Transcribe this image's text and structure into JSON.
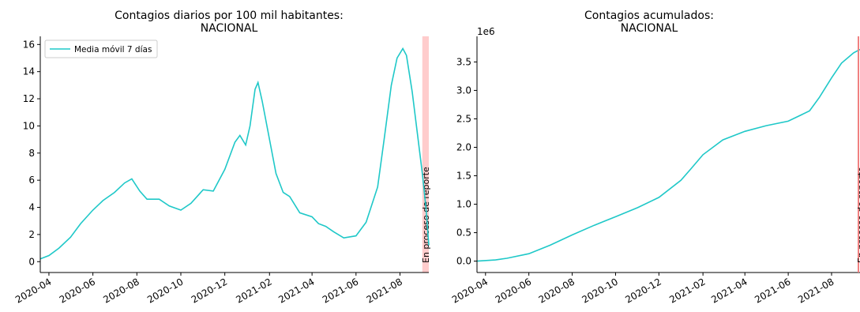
{
  "chart_data": [
    {
      "type": "line",
      "title": "Contagios diarios por 100 mil habitantes:\nNACIONAL",
      "xlabel": "",
      "ylabel": "",
      "x_ticks": [
        "2020-04",
        "2020-06",
        "2020-08",
        "2020-10",
        "2020-12",
        "2021-02",
        "2021-04",
        "2021-06",
        "2021-08"
      ],
      "y_ticks": [
        0,
        2,
        4,
        6,
        8,
        10,
        12,
        14,
        16
      ],
      "ylim": [
        -0.8,
        16.6
      ],
      "xlim": [
        "2020-03-20",
        "2021-09-10"
      ],
      "grid": false,
      "legend_position": "top-left",
      "series": [
        {
          "name": "Media móvil 7 días",
          "color": "#1fc8c8",
          "points": [
            [
              "2020-03-20",
              0.2
            ],
            [
              "2020-04-01",
              0.45
            ],
            [
              "2020-04-15",
              1.0
            ],
            [
              "2020-05-01",
              1.8
            ],
            [
              "2020-05-15",
              2.8
            ],
            [
              "2020-06-01",
              3.8
            ],
            [
              "2020-06-15",
              4.5
            ],
            [
              "2020-07-01",
              5.1
            ],
            [
              "2020-07-15",
              5.8
            ],
            [
              "2020-07-25",
              6.1
            ],
            [
              "2020-08-05",
              5.2
            ],
            [
              "2020-08-15",
              4.6
            ],
            [
              "2020-09-01",
              4.6
            ],
            [
              "2020-09-15",
              4.1
            ],
            [
              "2020-10-01",
              3.8
            ],
            [
              "2020-10-15",
              4.3
            ],
            [
              "2020-11-01",
              5.3
            ],
            [
              "2020-11-15",
              5.2
            ],
            [
              "2020-12-01",
              6.8
            ],
            [
              "2020-12-15",
              8.8
            ],
            [
              "2020-12-22",
              9.3
            ],
            [
              "2020-12-30",
              8.6
            ],
            [
              "2021-01-05",
              10.0
            ],
            [
              "2021-01-12",
              12.7
            ],
            [
              "2021-01-16",
              13.2
            ],
            [
              "2021-01-22",
              11.8
            ],
            [
              "2021-02-01",
              9.0
            ],
            [
              "2021-02-10",
              6.5
            ],
            [
              "2021-02-20",
              5.1
            ],
            [
              "2021-03-01",
              4.8
            ],
            [
              "2021-03-15",
              3.6
            ],
            [
              "2021-04-01",
              3.3
            ],
            [
              "2021-04-10",
              2.8
            ],
            [
              "2021-04-20",
              2.6
            ],
            [
              "2021-05-01",
              2.2
            ],
            [
              "2021-05-15",
              1.75
            ],
            [
              "2021-06-01",
              1.9
            ],
            [
              "2021-06-15",
              2.9
            ],
            [
              "2021-07-01",
              5.5
            ],
            [
              "2021-07-10",
              9.0
            ],
            [
              "2021-07-20",
              13.0
            ],
            [
              "2021-07-28",
              15.0
            ],
            [
              "2021-08-05",
              15.7
            ],
            [
              "2021-08-10",
              15.2
            ],
            [
              "2021-08-18",
              12.5
            ],
            [
              "2021-08-25",
              9.5
            ],
            [
              "2021-09-01",
              6.5
            ],
            [
              "2021-09-06",
              4.0
            ],
            [
              "2021-09-10",
              1.2
            ]
          ]
        }
      ],
      "annotation": {
        "text": "En proceso de reporte",
        "span": [
          "2021-09-01",
          "2021-09-10"
        ],
        "color": "#ffcccc"
      }
    },
    {
      "type": "line",
      "title": "Contagios acumulados:\nNACIONAL",
      "xlabel": "",
      "ylabel": "",
      "y_offset_label": "1e6",
      "x_ticks": [
        "2020-04",
        "2020-06",
        "2020-08",
        "2020-10",
        "2020-12",
        "2021-02",
        "2021-04",
        "2021-06",
        "2021-08"
      ],
      "y_ticks": [
        0.0,
        0.5,
        1.0,
        1.5,
        2.0,
        2.5,
        3.0,
        3.5
      ],
      "ylim": [
        -0.2,
        3.95
      ],
      "xlim": [
        "2020-03-20",
        "2021-09-10"
      ],
      "grid": false,
      "series": [
        {
          "name": "",
          "color": "#1fc8c8",
          "points": [
            [
              "2020-03-20",
              0.0
            ],
            [
              "2020-04-15",
              0.02
            ],
            [
              "2020-05-01",
              0.05
            ],
            [
              "2020-06-01",
              0.13
            ],
            [
              "2020-07-01",
              0.28
            ],
            [
              "2020-08-01",
              0.46
            ],
            [
              "2020-09-01",
              0.63
            ],
            [
              "2020-10-01",
              0.78
            ],
            [
              "2020-11-01",
              0.94
            ],
            [
              "2020-12-01",
              1.12
            ],
            [
              "2021-01-01",
              1.42
            ],
            [
              "2021-01-15",
              1.62
            ],
            [
              "2021-02-01",
              1.87
            ],
            [
              "2021-03-01",
              2.13
            ],
            [
              "2021-04-01",
              2.28
            ],
            [
              "2021-05-01",
              2.38
            ],
            [
              "2021-06-01",
              2.46
            ],
            [
              "2021-07-01",
              2.64
            ],
            [
              "2021-07-15",
              2.88
            ],
            [
              "2021-08-01",
              3.22
            ],
            [
              "2021-08-15",
              3.48
            ],
            [
              "2021-09-01",
              3.66
            ],
            [
              "2021-09-10",
              3.72
            ]
          ]
        }
      ],
      "annotation": {
        "text": "En proceso de reporte",
        "span": [
          "2021-09-10",
          "2021-09-10"
        ],
        "color": "#ffcccc"
      }
    }
  ]
}
